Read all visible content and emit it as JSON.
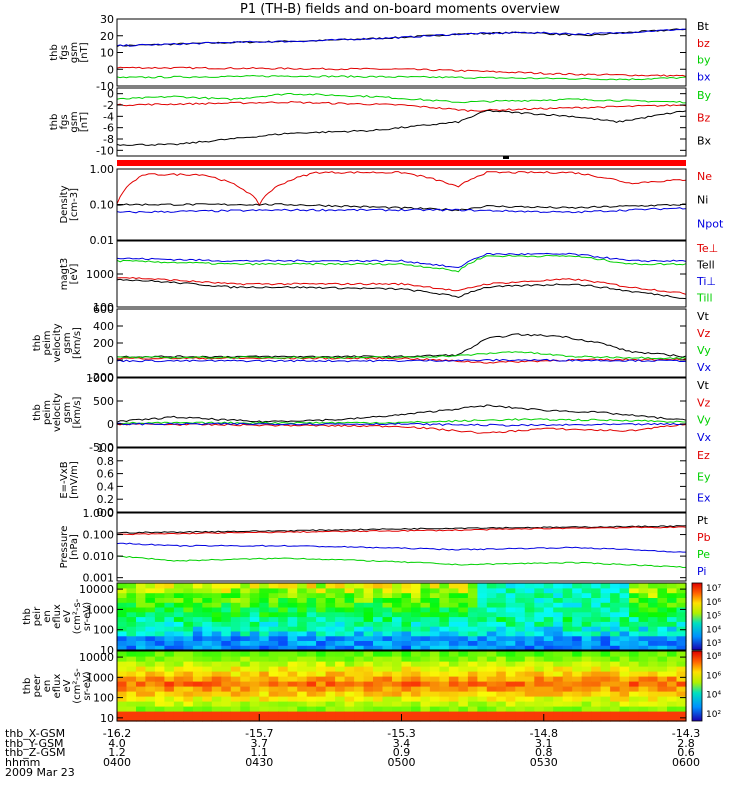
{
  "title": "P1 (TH-B) fields and on-board moments overview",
  "footer": {
    "row_labels": [
      "thb_X-GSM",
      "thb_Y-GSM",
      "thb_Z-GSM",
      "hhmm",
      "2009 Mar 23"
    ],
    "columns": [
      {
        "x": "-16.2",
        "y": "4.0",
        "z": "1.2",
        "t": "0400"
      },
      {
        "x": "-15.7",
        "y": "3.7",
        "z": "1.1",
        "t": "0430"
      },
      {
        "x": "-15.3",
        "y": "3.4",
        "z": "0.9",
        "t": "0500"
      },
      {
        "x": "-14.8",
        "y": "3.1",
        "z": "0.8",
        "t": "0530"
      },
      {
        "x": "-14.3",
        "y": "2.8",
        "z": "0.6",
        "t": "0600"
      }
    ]
  },
  "colors": {
    "black": "#000000",
    "red": "#e00000",
    "green": "#00d000",
    "blue": "#0000e0",
    "frame": "#000000"
  },
  "chart_data": [
    {
      "type": "line",
      "ylabel_lines": [
        "thb",
        "fgs",
        "gsm",
        "[nT]"
      ],
      "ylim": [
        -10,
        30
      ],
      "ticks": [
        "30",
        "20",
        "10",
        "0",
        "-10"
      ],
      "tick_values": [
        30,
        20,
        10,
        0,
        -10
      ],
      "series": [
        {
          "name": "Bt",
          "color": "black",
          "x": [
            0,
            0.2,
            0.35,
            0.5,
            0.6,
            0.72,
            0.82,
            0.9,
            1.0
          ],
          "y": [
            14,
            16,
            17,
            19,
            21,
            22,
            20,
            22,
            24
          ]
        },
        {
          "name": "bz",
          "color": "red",
          "x": [
            0,
            0.5,
            0.62,
            0.8,
            1.0
          ],
          "y": [
            1,
            0,
            -1,
            -3,
            -4
          ]
        },
        {
          "name": "by",
          "color": "green",
          "x": [
            0,
            0.3,
            0.62,
            0.9,
            1.0
          ],
          "y": [
            -5,
            -4,
            -5,
            -6,
            -5
          ]
        },
        {
          "name": "bx",
          "color": "blue",
          "x": [
            0,
            0.2,
            0.35,
            0.5,
            0.6,
            0.72,
            0.82,
            0.9,
            1.0
          ],
          "y": [
            14,
            16,
            17,
            19,
            21,
            22,
            21,
            22,
            24
          ]
        }
      ]
    },
    {
      "type": "line",
      "ylabel_lines": [
        "thb",
        "fgs",
        "gsm",
        "[nT]"
      ],
      "ylim": [
        -11,
        1
      ],
      "ticks": [
        "0",
        "-2",
        "-4",
        "-6",
        "-8",
        "-10"
      ],
      "tick_values": [
        0,
        -2,
        -4,
        -6,
        -8,
        -10
      ],
      "series": [
        {
          "name": "By",
          "color": "green",
          "x": [
            0,
            0.1,
            0.2,
            0.3,
            0.45,
            0.6,
            0.8,
            1.0
          ],
          "y": [
            -1,
            -0.5,
            -1,
            0,
            -0.5,
            -1.5,
            -1,
            -1.5
          ]
        },
        {
          "name": "Bz",
          "color": "red",
          "x": [
            0,
            0.3,
            0.5,
            0.62,
            0.8,
            1.0
          ],
          "y": [
            -2,
            -1.5,
            -2,
            -3,
            -2.5,
            -2
          ]
        },
        {
          "name": "Bx",
          "color": "black",
          "x": [
            0,
            0.1,
            0.2,
            0.3,
            0.45,
            0.6,
            0.65,
            0.8,
            0.88,
            1.0
          ],
          "y": [
            -9,
            -9,
            -8,
            -7,
            -6.5,
            -5,
            -3,
            -4,
            -5,
            -3
          ]
        }
      ]
    },
    {
      "type": "line",
      "ylabel_lines": [
        "Density",
        "[cm-3]"
      ],
      "yscale": "log",
      "ylim": [
        0.01,
        1.0
      ],
      "ticks": [
        "1.00",
        "0.10",
        "0.01"
      ],
      "tick_values": [
        1.0,
        0.1,
        0.01
      ],
      "series": [
        {
          "name": "Ne",
          "color": "red",
          "x": [
            0,
            0.05,
            0.15,
            0.25,
            0.35,
            0.5,
            0.6,
            0.65,
            0.8,
            0.9,
            1.0
          ],
          "y": [
            0.1,
            0.7,
            0.7,
            0.1,
            0.8,
            0.8,
            0.3,
            0.8,
            0.8,
            0.4,
            0.5
          ]
        },
        {
          "name": "Ni",
          "color": "black",
          "x": [
            0,
            0.3,
            0.6,
            0.65,
            0.8,
            1.0
          ],
          "y": [
            0.1,
            0.1,
            0.07,
            0.09,
            0.08,
            0.1
          ]
        },
        {
          "name": "Npot",
          "color": "blue",
          "x": [
            0,
            0.3,
            0.6,
            0.8,
            1.0
          ],
          "y": [
            0.06,
            0.07,
            0.07,
            0.06,
            0.08
          ]
        }
      ]
    },
    {
      "type": "line",
      "ylabel_lines": [
        "magt3",
        "[eV]"
      ],
      "yscale": "log",
      "ylim": [
        100,
        10000
      ],
      "ticks": [
        "1000",
        "100"
      ],
      "tick_values": [
        1000,
        100
      ],
      "series": [
        {
          "name": "Te⊥",
          "color": "red",
          "x": [
            0,
            0.2,
            0.3,
            0.5,
            0.6,
            0.65,
            0.8,
            0.9,
            1.0
          ],
          "y": [
            800,
            500,
            500,
            500,
            300,
            500,
            700,
            400,
            250
          ]
        },
        {
          "name": "Tell",
          "color": "black",
          "x": [
            0,
            0.2,
            0.3,
            0.5,
            0.6,
            0.65,
            0.8,
            0.9,
            1.0
          ],
          "y": [
            700,
            400,
            400,
            350,
            200,
            400,
            500,
            300,
            180
          ]
        },
        {
          "name": "Ti⊥",
          "color": "blue",
          "x": [
            0,
            0.2,
            0.3,
            0.5,
            0.6,
            0.65,
            0.8,
            0.9,
            1.0
          ],
          "y": [
            3000,
            2500,
            2500,
            2500,
            1500,
            4000,
            4000,
            2500,
            2500
          ]
        },
        {
          "name": "Till",
          "color": "green",
          "x": [
            0,
            0.2,
            0.3,
            0.5,
            0.6,
            0.65,
            0.8,
            0.9,
            1.0
          ],
          "y": [
            2500,
            2000,
            2000,
            2000,
            1200,
            3500,
            3500,
            2000,
            2000
          ]
        }
      ]
    },
    {
      "type": "line",
      "ylabel_lines": [
        "thb",
        "peim",
        "velocity",
        "gsm",
        "[km/s]"
      ],
      "ylim": [
        -200,
        600
      ],
      "ticks": [
        "600",
        "400",
        "200",
        "0",
        "-200"
      ],
      "tick_values": [
        600,
        400,
        200,
        0,
        -200
      ],
      "series": [
        {
          "name": "Vt",
          "color": "black",
          "x": [
            0,
            0.5,
            0.6,
            0.65,
            0.7,
            0.78,
            0.85,
            0.9,
            1.0
          ],
          "y": [
            40,
            40,
            60,
            250,
            300,
            280,
            200,
            100,
            40
          ]
        },
        {
          "name": "Vz",
          "color": "red",
          "x": [
            0,
            0.5,
            0.65,
            0.8,
            1.0
          ],
          "y": [
            20,
            20,
            -30,
            0,
            10
          ]
        },
        {
          "name": "Vy",
          "color": "green",
          "x": [
            0,
            0.5,
            0.6,
            0.7,
            0.8,
            1.0
          ],
          "y": [
            30,
            30,
            50,
            100,
            40,
            20
          ]
        },
        {
          "name": "Vx",
          "color": "blue",
          "x": [
            0,
            0.5,
            0.7,
            1.0
          ],
          "y": [
            -10,
            -10,
            0,
            -10
          ]
        }
      ]
    },
    {
      "type": "line",
      "ylabel_lines": [
        "thb",
        "peim",
        "velocity",
        "gsm",
        "[km/s]"
      ],
      "ylim": [
        -500,
        1000
      ],
      "ticks": [
        "1000",
        "500",
        "0",
        "-500"
      ],
      "tick_values": [
        1000,
        500,
        0,
        -500
      ],
      "series": [
        {
          "name": "Vt",
          "color": "black",
          "x": [
            0,
            0.1,
            0.25,
            0.4,
            0.5,
            0.65,
            0.75,
            0.85,
            1.0
          ],
          "y": [
            50,
            150,
            50,
            100,
            200,
            400,
            300,
            250,
            80
          ]
        },
        {
          "name": "Vz",
          "color": "red",
          "x": [
            0,
            0.5,
            0.65,
            0.75,
            0.9,
            1.0
          ],
          "y": [
            0,
            -50,
            -200,
            -100,
            -150,
            0
          ]
        },
        {
          "name": "Vy",
          "color": "green",
          "x": [
            0,
            0.5,
            0.7,
            0.9,
            1.0
          ],
          "y": [
            20,
            30,
            100,
            80,
            40
          ]
        },
        {
          "name": "Vx",
          "color": "blue",
          "x": [
            0,
            0.5,
            0.7,
            1.0
          ],
          "y": [
            0,
            0,
            -30,
            0
          ]
        }
      ]
    },
    {
      "type": "line",
      "ylabel_lines": [
        "E=-VxB",
        "[mV/m]"
      ],
      "ylim": [
        0.0,
        1.0
      ],
      "ticks": [
        "1.0",
        "0.8",
        "0.6",
        "0.4",
        "0.2",
        "0.0"
      ],
      "tick_values": [
        1.0,
        0.8,
        0.6,
        0.4,
        0.2,
        0.0
      ],
      "series": [
        {
          "name": "Ez",
          "color": "red",
          "x": [],
          "y": []
        },
        {
          "name": "Ey",
          "color": "green",
          "x": [],
          "y": []
        },
        {
          "name": "Ex",
          "color": "blue",
          "x": [],
          "y": []
        }
      ]
    },
    {
      "type": "line",
      "ylabel_lines": [
        "Pressure",
        "[nPa]"
      ],
      "yscale": "log",
      "ylim": [
        0.0007,
        1.0
      ],
      "ticks": [
        "1.000",
        "0.100",
        "0.010",
        "0.001"
      ],
      "tick_values": [
        1.0,
        0.1,
        0.01,
        0.001
      ],
      "series": [
        {
          "name": "Pt",
          "color": "black",
          "x": [
            0,
            0.3,
            0.6,
            0.8,
            1.0
          ],
          "y": [
            0.12,
            0.15,
            0.2,
            0.22,
            0.25
          ]
        },
        {
          "name": "Pb",
          "color": "red",
          "x": [
            0,
            0.3,
            0.6,
            0.8,
            1.0
          ],
          "y": [
            0.1,
            0.13,
            0.16,
            0.2,
            0.22
          ]
        },
        {
          "name": "Pe",
          "color": "green",
          "x": [
            0,
            0.1,
            0.3,
            0.6,
            0.8,
            1.0
          ],
          "y": [
            0.01,
            0.006,
            0.008,
            0.004,
            0.005,
            0.003
          ]
        },
        {
          "name": "Pi",
          "color": "blue",
          "x": [
            0,
            0.1,
            0.3,
            0.6,
            0.8,
            1.0
          ],
          "y": [
            0.04,
            0.03,
            0.03,
            0.02,
            0.025,
            0.015
          ]
        }
      ]
    },
    {
      "type": "heatmap",
      "ylabel_lines": [
        "thb",
        "peir",
        "en",
        "eflux",
        "eV",
        "(cm²-s-",
        "sr-eV)"
      ],
      "yscale": "log",
      "ylim": [
        10,
        20000
      ],
      "ticks": [
        "10000",
        "1000",
        "100",
        "10"
      ],
      "tick_values": [
        10000,
        1000,
        100,
        10
      ],
      "colorbar_ticks": [
        "10⁷",
        "10⁶",
        "10⁵",
        "10⁴",
        "10³"
      ]
    },
    {
      "type": "heatmap",
      "ylabel_lines": [
        "thb",
        "peer",
        "en",
        "eflux",
        "eV",
        "(cm²-s-",
        "sr-eV)"
      ],
      "yscale": "log",
      "ylim": [
        7,
        20000
      ],
      "ticks": [
        "10000",
        "1000",
        "100",
        "10"
      ],
      "tick_values": [
        10000,
        1000,
        100,
        10
      ],
      "colorbar_ticks": [
        "10⁸",
        "10⁶",
        "10⁴",
        "10²"
      ]
    }
  ]
}
